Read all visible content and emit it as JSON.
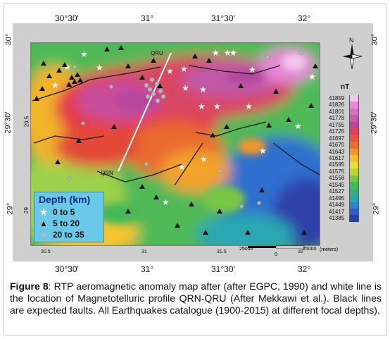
{
  "map": {
    "top_ticks": [
      "30°30'",
      "31°",
      "31°30'",
      "32°"
    ],
    "bottom_ticks": [
      "30°30'",
      "31°",
      "31°30'",
      "32°"
    ],
    "left_ticks": [
      "30°",
      "29.5",
      "29°30'",
      "29°",
      "29"
    ],
    "right_ticks": [
      "30°",
      "29°30'",
      "29°"
    ],
    "inner_bottom_ticks": [
      "30.5",
      "31",
      "31.5",
      "32"
    ],
    "profile_labels": {
      "north": "QRU",
      "south": "QRN"
    },
    "north_label": "N",
    "colorbar": {
      "unit": "nT",
      "labels": [
        "41859",
        "41826",
        "41801",
        "41778",
        "41755",
        "41725",
        "41697",
        "41670",
        "41643",
        "41617",
        "41595",
        "41575",
        "41558",
        "41545",
        "41527",
        "41495",
        "41449",
        "41417",
        "41385"
      ],
      "colors": [
        "#f2c8ea",
        "#e789d8",
        "#d86fc5",
        "#c95aa7",
        "#b6479b",
        "#e03f5d",
        "#e8513d",
        "#ef6d2f",
        "#f3962c",
        "#f7bf2b",
        "#e9dc37",
        "#b8d63b",
        "#78c644",
        "#45b85a",
        "#31b17d",
        "#2aa7b0",
        "#2e84cf",
        "#315ec5",
        "#2f3fa9"
      ]
    },
    "scalebar": {
      "left": "25000",
      "mid": "0",
      "right": "25000",
      "unit": "(meters)"
    },
    "legend": {
      "title": "Depth (km)",
      "rows": [
        {
          "symbol": "star",
          "color": "#ffffff",
          "label": "0  to  5"
        },
        {
          "symbol": "triangle",
          "color": "#111111",
          "label": "5  to  20"
        },
        {
          "symbol": "circle",
          "color": "#b9b9b9",
          "label": "20  to  35"
        }
      ]
    }
  },
  "caption": {
    "label": "Figure 8",
    "text": ":  RTP aeromagnetic anomaly map after (after EGPC, 1990) and white line is the location of Magnetotelluric profile QRN-QRU (After Mekkawi et al.). Black lines are expected faults. All Earthquakes catalogue (1900-2015) at different focal depths)."
  }
}
